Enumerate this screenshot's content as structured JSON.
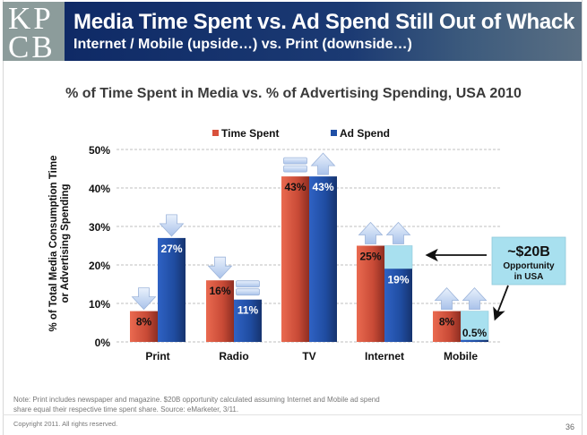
{
  "logo": {
    "line1": "KP",
    "line2": "CB"
  },
  "header": {
    "title": "Media Time Spent vs. Ad Spend Still Out of Whack",
    "subtitle": "Internet / Mobile (upside…) vs. Print (downside…)"
  },
  "colors": {
    "time_spent": "#d9513c",
    "ad_spend": "#1f4fa6",
    "opportunity": "#a8e0ef",
    "header_blue": "#1b3a73",
    "logo_gray": "#8c9c9b"
  },
  "chart_data": {
    "type": "bar",
    "title": "% of Time Spent in Media vs. % of Advertising Spending, USA 2010",
    "xlabel": "",
    "ylabel_lines": [
      "% of Total Media Consumption Time",
      "or Advertising Spending"
    ],
    "ylim": [
      0,
      50
    ],
    "yticks": [
      0,
      10,
      20,
      30,
      40,
      50
    ],
    "ytick_labels": [
      "0%",
      "10%",
      "20%",
      "30%",
      "40%",
      "50%"
    ],
    "grid": true,
    "legend_position": "top-center",
    "categories": [
      "Print",
      "Radio",
      "TV",
      "Internet",
      "Mobile"
    ],
    "series": [
      {
        "name": "Time Spent",
        "values": [
          8,
          16,
          43,
          25,
          8
        ],
        "labels": [
          "8%",
          "16%",
          "43%",
          "25%",
          "8%"
        ]
      },
      {
        "name": "Ad Spend",
        "values": [
          27,
          11,
          43,
          19,
          0.5
        ],
        "labels": [
          "27%",
          "11%",
          "43%",
          "19%",
          "0.5%"
        ]
      }
    ],
    "trend_indicators": {
      "Time Spent": [
        "down",
        "down",
        "flat",
        "up",
        "up"
      ],
      "Ad Spend": [
        "down",
        "flat",
        "up",
        "up",
        "up"
      ]
    },
    "opportunity_gap": {
      "categories": [
        "Internet",
        "Mobile"
      ],
      "from": [
        19,
        0.5
      ],
      "to": [
        25,
        8
      ]
    },
    "annotation": {
      "amount": "~$20B",
      "line2": "Opportunity",
      "line3": "in USA"
    }
  },
  "note": {
    "line1": "Note: Print includes newspaper and magazine. $20B opportunity calculated assuming Internet and Mobile ad spend",
    "line2": "share equal their respective time spent share. Source: eMarketer, 3/11."
  },
  "footer": {
    "copyright": "Copyright 2011. All rights reserved.",
    "page_number": "36"
  }
}
